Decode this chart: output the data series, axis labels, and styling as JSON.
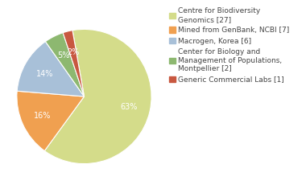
{
  "labels": [
    "Centre for Biodiversity\nGenomics [27]",
    "Mined from GenBank, NCBI [7]",
    "Macrogen, Korea [6]",
    "Center for Biology and\nManagement of Populations,\nMontpellier [2]",
    "Generic Commercial Labs [1]"
  ],
  "values": [
    27,
    7,
    6,
    2,
    1
  ],
  "colors": [
    "#d4dc8a",
    "#f0a050",
    "#a8c0d8",
    "#8db870",
    "#c85840"
  ],
  "background_color": "#ffffff",
  "text_color": "#444444",
  "fontsize": 7.0,
  "legend_fontsize": 6.5
}
